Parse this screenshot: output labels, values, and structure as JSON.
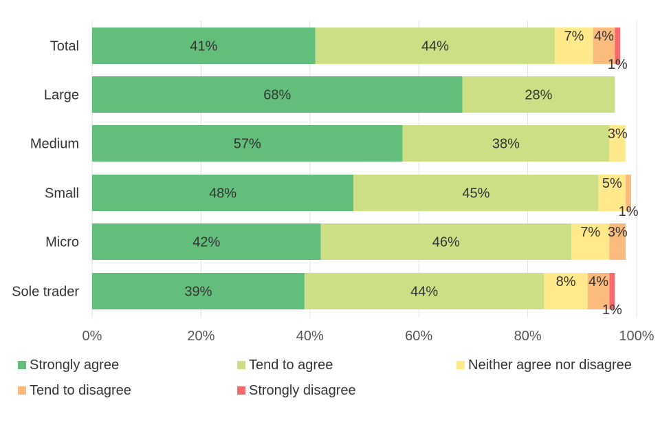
{
  "chart_data": {
    "type": "bar",
    "orientation": "horizontal",
    "stacked": true,
    "categories": [
      "Total",
      "Large",
      "Medium",
      "Small",
      "Micro",
      "Sole trader"
    ],
    "series": [
      {
        "name": "Strongly agree",
        "color": "#63be7b",
        "values": [
          41,
          68,
          57,
          48,
          42,
          39
        ],
        "labels": [
          "41%",
          "68%",
          "57%",
          "48%",
          "42%",
          "39%"
        ]
      },
      {
        "name": "Tend to agree",
        "color": "#cddf85",
        "values": [
          44,
          28,
          38,
          45,
          46,
          44
        ],
        "labels": [
          "44%",
          "28%",
          "38%",
          "45%",
          "46%",
          "44%"
        ]
      },
      {
        "name": "Neither agree nor disagree",
        "color": "#ffe98a",
        "values": [
          7,
          0,
          3,
          5,
          7,
          8
        ],
        "labels": [
          "7%",
          "",
          "3%",
          "5%",
          "7%",
          "8%"
        ]
      },
      {
        "name": "Tend to disagree",
        "color": "#fbbb7c",
        "values": [
          4,
          0,
          0,
          1,
          3,
          4
        ],
        "labels": [
          "4%",
          "",
          "",
          "1%",
          "3%",
          "4%"
        ]
      },
      {
        "name": "Strongly disagree",
        "color": "#f8696b",
        "values": [
          1,
          0,
          0,
          0,
          0,
          1
        ],
        "labels": [
          "1%",
          "",
          "",
          "",
          "",
          "1%"
        ]
      }
    ],
    "xlim": [
      0,
      100
    ],
    "x_ticks": [
      "0%",
      "20%",
      "40%",
      "60%",
      "80%",
      "100%"
    ],
    "grid": true,
    "legend_position": "bottom"
  }
}
